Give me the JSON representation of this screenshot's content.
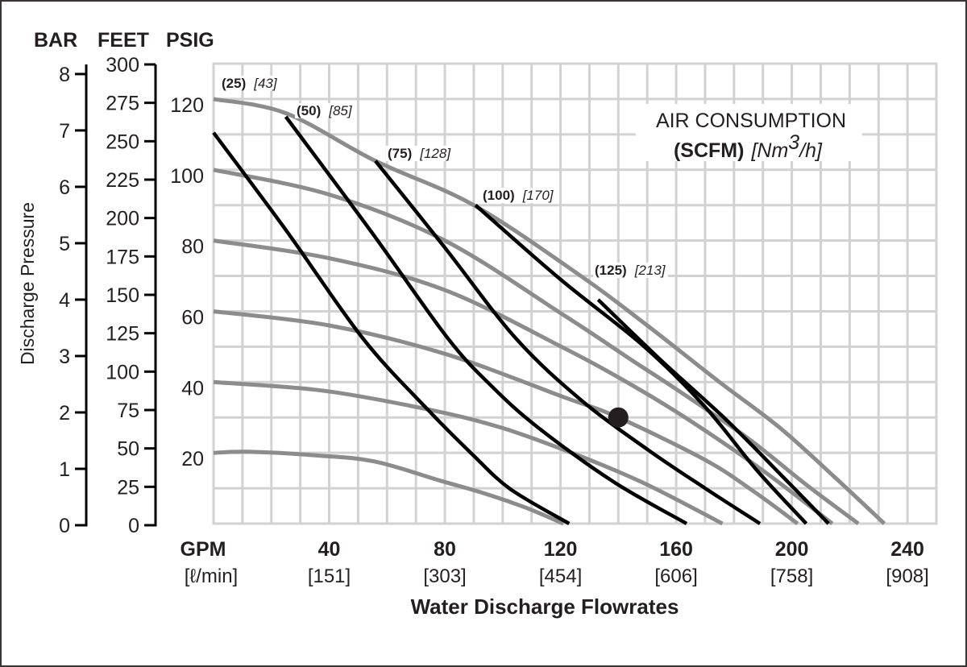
{
  "chart_data": {
    "type": "line",
    "title": "",
    "xlabel": "Water Discharge Flowrates",
    "ylabel": "Discharge Pressure",
    "x_unit_label": "GPM",
    "x_unit_label_metric": "[ℓ/min]",
    "xlim": [
      0,
      250
    ],
    "ylim": [
      0,
      130
    ],
    "grid": true,
    "x_ticks": [
      {
        "value": 40,
        "label": "40",
        "metric": "[151]"
      },
      {
        "value": 80,
        "label": "80",
        "metric": "[303]"
      },
      {
        "value": 120,
        "label": "120",
        "metric": "[454]"
      },
      {
        "value": 160,
        "label": "160",
        "metric": "[606]"
      },
      {
        "value": 200,
        "label": "200",
        "metric": "[758]"
      },
      {
        "value": 240,
        "label": "240",
        "metric": "[908]"
      }
    ],
    "y_axes": [
      {
        "name": "BAR",
        "max": 8.17,
        "ticks": [
          "0",
          "1",
          "2",
          "3",
          "4",
          "5",
          "6",
          "7",
          "8"
        ]
      },
      {
        "name": "FEET",
        "max": 300,
        "ticks": [
          "0",
          "25",
          "50",
          "75",
          "100",
          "125",
          "150",
          "175",
          "200",
          "225",
          "250",
          "275",
          "300"
        ]
      },
      {
        "name": "PSIG",
        "max": 130,
        "ticks": [
          "20",
          "40",
          "60",
          "80",
          "100",
          "120"
        ]
      }
    ],
    "pressure_series": [
      {
        "name": "120 PSIG",
        "color": "#8c8c8c",
        "points": [
          [
            0,
            120
          ],
          [
            25,
            116
          ],
          [
            56,
            102.5
          ],
          [
            90,
            90
          ],
          [
            127,
            70
          ],
          [
            150,
            56
          ],
          [
            175,
            40
          ],
          [
            196,
            27
          ],
          [
            215,
            13
          ],
          [
            232,
            0
          ]
        ]
      },
      {
        "name": "100 PSIG",
        "color": "#8c8c8c",
        "points": [
          [
            0,
            100
          ],
          [
            40,
            93
          ],
          [
            80,
            80
          ],
          [
            121,
            59
          ],
          [
            145,
            46
          ],
          [
            160,
            38
          ],
          [
            185,
            24
          ],
          [
            205,
            11
          ],
          [
            223,
            0
          ]
        ]
      },
      {
        "name": "80 PSIG",
        "color": "#8c8c8c",
        "points": [
          [
            0,
            80
          ],
          [
            40,
            75
          ],
          [
            80,
            66
          ],
          [
            121,
            49.7
          ],
          [
            145,
            39
          ],
          [
            165,
            29
          ],
          [
            190,
            15
          ],
          [
            214,
            0
          ]
        ]
      },
      {
        "name": "60 PSIG",
        "color": "#8c8c8c",
        "points": [
          [
            0,
            60
          ],
          [
            40,
            56
          ],
          [
            80,
            48
          ],
          [
            121,
            35.8
          ],
          [
            140,
            30
          ],
          [
            170,
            18
          ],
          [
            187,
            9
          ],
          [
            202,
            0
          ]
        ]
      },
      {
        "name": "40 PSIG",
        "color": "#8c8c8c",
        "points": [
          [
            0,
            40
          ],
          [
            37.6,
            37.6
          ],
          [
            74,
            32.3
          ],
          [
            100,
            27
          ],
          [
            127,
            19
          ],
          [
            150,
            11
          ],
          [
            176,
            0
          ]
        ]
      },
      {
        "name": "20 PSIG",
        "color": "#8c8c8c",
        "points": [
          [
            0,
            20
          ],
          [
            12,
            20.3
          ],
          [
            37,
            19.2
          ],
          [
            56,
            17.5
          ],
          [
            79,
            12
          ],
          [
            93,
            8.7
          ],
          [
            108,
            4.5
          ],
          [
            121,
            0
          ]
        ]
      }
    ],
    "air_series": [
      {
        "scfm": "(25)",
        "nm3h": "[43]",
        "color": "#000000",
        "points": [
          [
            0,
            110.5
          ],
          [
            25,
            83
          ],
          [
            51.6,
            52.4
          ],
          [
            74,
            32.3
          ],
          [
            89,
            20
          ],
          [
            102.6,
            9.8
          ],
          [
            123,
            0
          ]
        ]
      },
      {
        "scfm": "(50)",
        "nm3h": "[85]",
        "color": "#000000",
        "points": [
          [
            25,
            115
          ],
          [
            55,
            82
          ],
          [
            81,
            52.4
          ],
          [
            96,
            39
          ],
          [
            112,
            27.3
          ],
          [
            138,
            12
          ],
          [
            163.6,
            0
          ]
        ]
      },
      {
        "scfm": "(75)",
        "nm3h": "[128]",
        "color": "#000000",
        "points": [
          [
            56,
            102.5
          ],
          [
            80,
            78
          ],
          [
            104.5,
            52.4
          ],
          [
            127,
            35
          ],
          [
            150,
            21
          ],
          [
            170,
            10
          ],
          [
            189,
            0
          ]
        ]
      },
      {
        "scfm": "(100)",
        "nm3h": "[170]",
        "color": "#000000",
        "points": [
          [
            90.6,
            90
          ],
          [
            120,
            69
          ],
          [
            149,
            50
          ],
          [
            170,
            33
          ],
          [
            188,
            15
          ],
          [
            205,
            0
          ]
        ]
      },
      {
        "scfm": "(125)",
        "nm3h": "[213]",
        "color": "#000000",
        "points": [
          [
            133,
            63.3
          ],
          [
            155,
            46
          ],
          [
            177,
            29.6
          ],
          [
            196,
            14
          ],
          [
            212.7,
            0
          ]
        ]
      }
    ],
    "operating_point": {
      "gpm": 140,
      "psig": 30,
      "color": "#231f20"
    },
    "legend": {
      "line1": "AIR CONSUMPTION",
      "line2_bold": "(SCFM)",
      "line2_italic_prefix": "[Nm",
      "line2_superscript": "3",
      "line2_italic_suffix": "/h]",
      "placement": "top-right"
    },
    "grid_color": "#d2d2d2"
  }
}
